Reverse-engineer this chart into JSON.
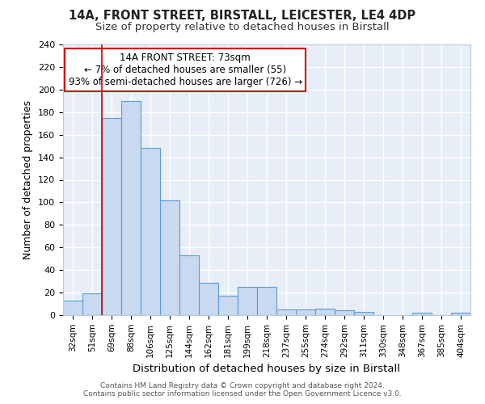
{
  "title1": "14A, FRONT STREET, BIRSTALL, LEICESTER, LE4 4DP",
  "title2": "Size of property relative to detached houses in Birstall",
  "xlabel": "Distribution of detached houses by size in Birstall",
  "ylabel": "Number of detached properties",
  "bin_labels": [
    "32sqm",
    "51sqm",
    "69sqm",
    "88sqm",
    "106sqm",
    "125sqm",
    "144sqm",
    "162sqm",
    "181sqm",
    "199sqm",
    "218sqm",
    "237sqm",
    "255sqm",
    "274sqm",
    "292sqm",
    "311sqm",
    "330sqm",
    "348sqm",
    "367sqm",
    "385sqm",
    "404sqm"
  ],
  "bar_heights": [
    13,
    19,
    175,
    190,
    148,
    102,
    53,
    29,
    17,
    25,
    25,
    5,
    5,
    6,
    4,
    3,
    0,
    0,
    2,
    0,
    2
  ],
  "bar_color": "#c9d9f0",
  "bar_edge_color": "#5b9bd5",
  "bar_edge_width": 0.8,
  "red_line_x": 2,
  "bin_edges": [
    0,
    1,
    2,
    3,
    4,
    5,
    6,
    7,
    8,
    9,
    10,
    11,
    12,
    13,
    14,
    15,
    16,
    17,
    18,
    19,
    20,
    21
  ],
  "ylim": [
    0,
    240
  ],
  "yticks": [
    0,
    20,
    40,
    60,
    80,
    100,
    120,
    140,
    160,
    180,
    200,
    220,
    240
  ],
  "annotation_title": "14A FRONT STREET: 73sqm",
  "annotation_line1": "← 7% of detached houses are smaller (55)",
  "annotation_line2": "93% of semi-detached houses are larger (726) →",
  "annotation_box_color": "#ffffff",
  "annotation_border_color": "#cc0000",
  "bg_color": "#e8eef7",
  "grid_color": "#ffffff",
  "fig_bg_color": "#ffffff",
  "footer1": "Contains HM Land Registry data © Crown copyright and database right 2024.",
  "footer2": "Contains public sector information licensed under the Open Government Licence v3.0."
}
